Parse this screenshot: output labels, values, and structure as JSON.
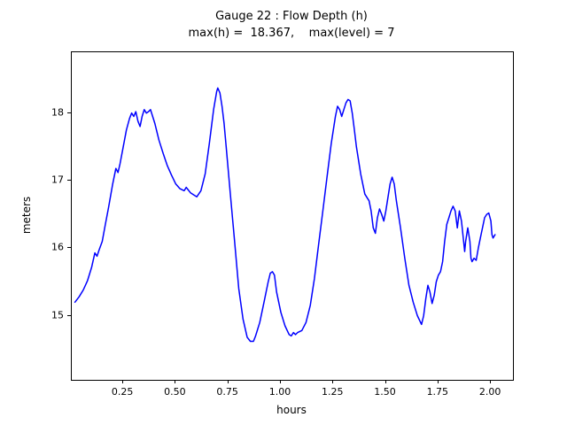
{
  "chart_data": {
    "type": "line",
    "title": "Gauge 22 : Flow Depth (h)",
    "subtitle": "max(h) =  18.367,    max(level) = 7",
    "xlabel": "hours",
    "ylabel": "meters",
    "xlim": [
      0.005,
      2.105
    ],
    "ylim": [
      14.05,
      18.9
    ],
    "xtick_values": [
      0.25,
      0.5,
      0.75,
      1.0,
      1.25,
      1.5,
      1.75,
      2.0
    ],
    "xtick_labels": [
      "0.25",
      "0.50",
      "0.75",
      "1.00",
      "1.25",
      "1.50",
      "1.75",
      "2.00"
    ],
    "ytick_values": [
      15,
      16,
      17,
      18
    ],
    "ytick_labels": [
      "15",
      "16",
      "17",
      "18"
    ],
    "line_color": "#0000ff",
    "grid": false,
    "legend": "none",
    "series": [
      {
        "name": "flow-depth",
        "x": [
          0.02,
          0.04,
          0.06,
          0.08,
          0.1,
          0.115,
          0.125,
          0.135,
          0.15,
          0.165,
          0.18,
          0.2,
          0.215,
          0.225,
          0.235,
          0.25,
          0.265,
          0.28,
          0.29,
          0.3,
          0.31,
          0.32,
          0.33,
          0.34,
          0.35,
          0.36,
          0.37,
          0.38,
          0.39,
          0.4,
          0.42,
          0.44,
          0.46,
          0.48,
          0.5,
          0.52,
          0.54,
          0.55,
          0.57,
          0.59,
          0.6,
          0.62,
          0.64,
          0.66,
          0.68,
          0.695,
          0.7,
          0.71,
          0.72,
          0.73,
          0.74,
          0.76,
          0.78,
          0.8,
          0.82,
          0.84,
          0.855,
          0.87,
          0.88,
          0.9,
          0.92,
          0.94,
          0.95,
          0.96,
          0.97,
          0.98,
          1.0,
          1.02,
          1.04,
          1.05,
          1.06,
          1.07,
          1.08,
          1.1,
          1.12,
          1.14,
          1.16,
          1.18,
          1.2,
          1.22,
          1.24,
          1.26,
          1.27,
          1.28,
          1.29,
          1.3,
          1.31,
          1.32,
          1.33,
          1.34,
          1.35,
          1.36,
          1.38,
          1.4,
          1.42,
          1.43,
          1.44,
          1.45,
          1.46,
          1.47,
          1.48,
          1.49,
          1.5,
          1.51,
          1.52,
          1.53,
          1.54,
          1.55,
          1.57,
          1.59,
          1.61,
          1.63,
          1.65,
          1.67,
          1.68,
          1.69,
          1.7,
          1.71,
          1.72,
          1.73,
          1.74,
          1.75,
          1.76,
          1.77,
          1.78,
          1.79,
          1.8,
          1.81,
          1.82,
          1.83,
          1.84,
          1.85,
          1.86,
          1.87,
          1.875,
          1.88,
          1.89,
          1.9,
          1.905,
          1.91,
          1.92,
          1.93,
          1.94,
          1.95,
          1.96,
          1.97,
          1.98,
          1.99,
          2.0,
          2.005,
          2.01,
          2.02
        ],
        "y": [
          15.2,
          15.28,
          15.38,
          15.52,
          15.72,
          15.93,
          15.88,
          15.97,
          16.1,
          16.35,
          16.6,
          16.95,
          17.18,
          17.12,
          17.25,
          17.5,
          17.75,
          17.92,
          18.0,
          17.95,
          18.02,
          17.88,
          17.8,
          17.95,
          18.05,
          18.0,
          18.02,
          18.05,
          17.95,
          17.85,
          17.6,
          17.4,
          17.22,
          17.08,
          16.95,
          16.88,
          16.85,
          16.9,
          16.82,
          16.78,
          16.76,
          16.85,
          17.1,
          17.55,
          18.05,
          18.32,
          18.37,
          18.3,
          18.1,
          17.85,
          17.5,
          16.8,
          16.1,
          15.4,
          14.95,
          14.68,
          14.62,
          14.62,
          14.7,
          14.9,
          15.2,
          15.5,
          15.63,
          15.65,
          15.6,
          15.35,
          15.05,
          14.85,
          14.72,
          14.7,
          14.75,
          14.72,
          14.75,
          14.78,
          14.9,
          15.15,
          15.55,
          16.05,
          16.55,
          17.05,
          17.55,
          17.95,
          18.1,
          18.05,
          17.95,
          18.05,
          18.15,
          18.2,
          18.18,
          18.0,
          17.75,
          17.5,
          17.1,
          16.8,
          16.7,
          16.55,
          16.3,
          16.22,
          16.45,
          16.58,
          16.5,
          16.4,
          16.55,
          16.75,
          16.95,
          17.05,
          16.95,
          16.7,
          16.3,
          15.85,
          15.45,
          15.2,
          15.0,
          14.87,
          15.0,
          15.25,
          15.45,
          15.35,
          15.18,
          15.3,
          15.5,
          15.6,
          15.65,
          15.8,
          16.1,
          16.35,
          16.45,
          16.55,
          16.62,
          16.55,
          16.3,
          16.55,
          16.4,
          16.1,
          15.95,
          16.1,
          16.3,
          16.1,
          15.85,
          15.8,
          15.85,
          15.82,
          16.0,
          16.15,
          16.3,
          16.45,
          16.5,
          16.52,
          16.4,
          16.2,
          16.15,
          16.2
        ]
      }
    ]
  }
}
